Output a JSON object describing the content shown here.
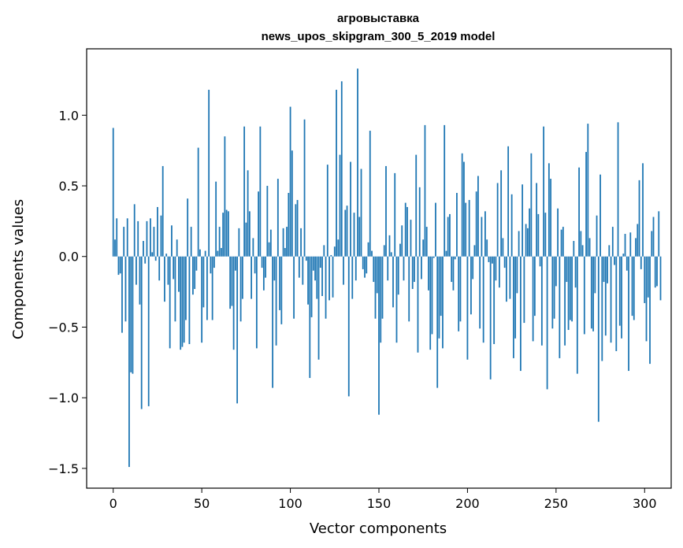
{
  "chart_data": {
    "type": "bar",
    "title": "агровыставка",
    "subtitle": "news_upos_skipgram_300_5_2019 model",
    "xlabel": "Vector components",
    "ylabel": "Components values",
    "xlim": [
      -15,
      315
    ],
    "ylim": [
      -1.64,
      1.47
    ],
    "xticks": [
      0,
      50,
      100,
      150,
      200,
      250,
      300
    ],
    "xtick_labels": [
      "0",
      "50",
      "100",
      "150",
      "200",
      "250",
      "300"
    ],
    "yticks": [
      -1.5,
      -1.0,
      -0.5,
      0.0,
      0.5,
      1.0
    ],
    "ytick_labels": [
      "−1.5",
      "−1.0",
      "−0.5",
      "0.0",
      "0.5",
      "1.0"
    ],
    "grid": false,
    "color": "#1f77b4",
    "values": [
      0.91,
      0.12,
      0.27,
      -0.13,
      -0.12,
      -0.54,
      0.21,
      -0.46,
      0.27,
      -1.49,
      -0.82,
      -0.83,
      0.37,
      -0.2,
      0.25,
      -0.34,
      -1.08,
      0.11,
      -0.05,
      0.25,
      -1.06,
      0.27,
      0.03,
      0.21,
      -0.03,
      0.35,
      -0.17,
      0.29,
      0.64,
      -0.32,
      0.02,
      -0.2,
      -0.65,
      0.22,
      -0.16,
      -0.46,
      0.12,
      -0.25,
      -0.66,
      -0.64,
      -0.61,
      -0.45,
      0.41,
      -0.62,
      0.21,
      -0.27,
      -0.23,
      -0.1,
      0.77,
      0.05,
      -0.61,
      -0.36,
      0.04,
      -0.45,
      1.18,
      -0.12,
      -0.45,
      -0.08,
      0.53,
      0.04,
      0.21,
      0.06,
      0.31,
      0.85,
      0.33,
      0.32,
      -0.37,
      -0.35,
      -0.66,
      -0.1,
      -1.04,
      0.2,
      -0.46,
      -0.3,
      0.92,
      0.24,
      0.61,
      0.32,
      -0.3,
      0.13,
      -0.12,
      -0.65,
      0.46,
      0.92,
      -0.08,
      -0.24,
      -0.15,
      0.5,
      0.1,
      0.19,
      -0.93,
      -0.17,
      -0.63,
      0.55,
      -0.38,
      -0.48,
      0.2,
      0.06,
      0.21,
      0.45,
      1.06,
      0.75,
      -0.44,
      0.37,
      0.4,
      -0.15,
      0.2,
      -0.2,
      0.97,
      -0.03,
      -0.34,
      -0.86,
      -0.43,
      -0.1,
      -0.17,
      -0.3,
      -0.73,
      -0.08,
      -0.28,
      0.08,
      -0.44,
      0.65,
      -0.31,
      0.01,
      -0.29,
      0.07,
      1.18,
      0.12,
      0.72,
      1.24,
      -0.2,
      0.33,
      0.36,
      -0.99,
      0.67,
      -0.3,
      0.31,
      -0.17,
      1.33,
      0.28,
      0.62,
      -0.09,
      -0.15,
      -0.12,
      0.1,
      0.89,
      0.04,
      -0.18,
      -0.44,
      -0.26,
      -1.12,
      -0.61,
      -0.44,
      0.08,
      0.64,
      -0.17,
      0.15,
      0.03,
      -0.36,
      0.59,
      -0.61,
      -0.27,
      0.09,
      0.22,
      -0.17,
      0.38,
      0.35,
      -0.46,
      0.26,
      -0.23,
      -0.18,
      0.72,
      -0.68,
      0.49,
      -0.16,
      0.12,
      0.93,
      0.21,
      -0.24,
      -0.66,
      -0.55,
      -0.01,
      0.38,
      -0.93,
      -0.58,
      -0.42,
      -0.65,
      0.93,
      0.04,
      0.28,
      0.3,
      -0.18,
      -0.24,
      -0.02,
      0.45,
      -0.53,
      -0.46,
      0.73,
      0.67,
      0.38,
      -0.73,
      0.4,
      -0.41,
      -0.16,
      0.08,
      0.46,
      0.57,
      -0.51,
      0.28,
      -0.61,
      0.32,
      0.12,
      -0.04,
      -0.87,
      -0.05,
      -0.62,
      -0.17,
      0.52,
      -0.22,
      0.61,
      0.13,
      -0.08,
      -0.32,
      0.78,
      -0.3,
      0.44,
      -0.72,
      -0.58,
      -0.26,
      0.18,
      -0.81,
      0.51,
      -0.47,
      0.23,
      0.2,
      0.34,
      0.73,
      -0.6,
      -0.42,
      0.52,
      0.3,
      -0.07,
      -0.63,
      0.92,
      0.31,
      -0.94,
      0.66,
      0.55,
      -0.51,
      -0.44,
      -0.21,
      0.34,
      -0.72,
      0.19,
      0.21,
      -0.63,
      -0.18,
      -0.52,
      -0.45,
      -0.46,
      0.11,
      -0.22,
      -0.83,
      0.63,
      0.18,
      0.08,
      -0.55,
      0.74,
      0.94,
      0.13,
      -0.51,
      -0.53,
      -0.26,
      0.29,
      -1.17,
      0.58,
      -0.74,
      -0.18,
      -0.56,
      -0.19,
      0.08,
      -0.61,
      0.21,
      -0.06,
      -0.67,
      0.95,
      -0.49,
      -0.58,
      0.02,
      0.16,
      -0.1,
      -0.81,
      0.17,
      -0.42,
      -0.45,
      0.13,
      0.23,
      0.54,
      -0.09,
      0.66,
      -0.33,
      -0.6,
      -0.29,
      -0.76,
      0.18,
      0.28,
      -0.22,
      -0.21,
      0.32,
      -0.31
    ]
  }
}
